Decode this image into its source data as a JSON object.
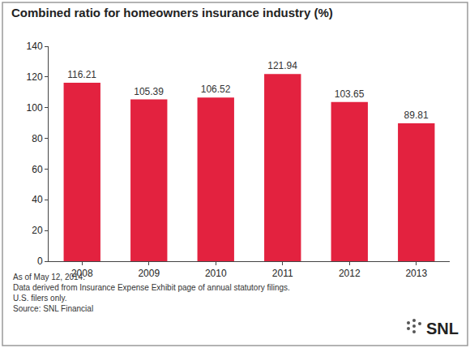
{
  "chart_data": {
    "type": "bar",
    "title": "Combined ratio for homeowners insurance industry (%)",
    "categories": [
      "2008",
      "2009",
      "2010",
      "2011",
      "2012",
      "2013"
    ],
    "values": [
      116.21,
      105.39,
      106.52,
      121.94,
      103.65,
      89.81
    ],
    "color": "#e3223f",
    "ylim": [
      0,
      140
    ],
    "yticks": [
      0,
      20,
      40,
      60,
      80,
      100,
      120,
      140
    ],
    "grid": false,
    "data_labels": true,
    "annotations": [
      "As of May 12, 2014.",
      "Data derived from Insurance Expense Exhibit page of annual statutory filings.",
      "U.S. filers only.",
      "Source: SNL Financial"
    ],
    "logo": "SNL"
  }
}
